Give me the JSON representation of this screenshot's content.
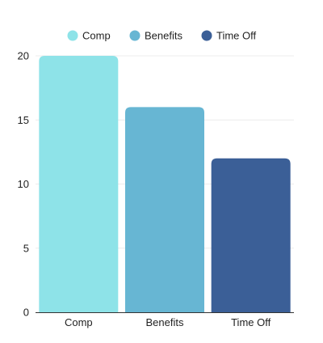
{
  "chart_data": {
    "type": "bar",
    "categories": [
      "Comp",
      "Benefits",
      "Time Off"
    ],
    "values": [
      20,
      16,
      12
    ],
    "colors": [
      "#8EE3E8",
      "#67B6D3",
      "#3B5F97"
    ],
    "legend": [
      "Comp",
      "Benefits",
      "Time Off"
    ],
    "legend_position": "top",
    "ylim": [
      0,
      20
    ],
    "yticks": [
      0,
      5,
      10,
      15,
      20
    ],
    "grid": true,
    "title": "",
    "xlabel": "",
    "ylabel": ""
  }
}
